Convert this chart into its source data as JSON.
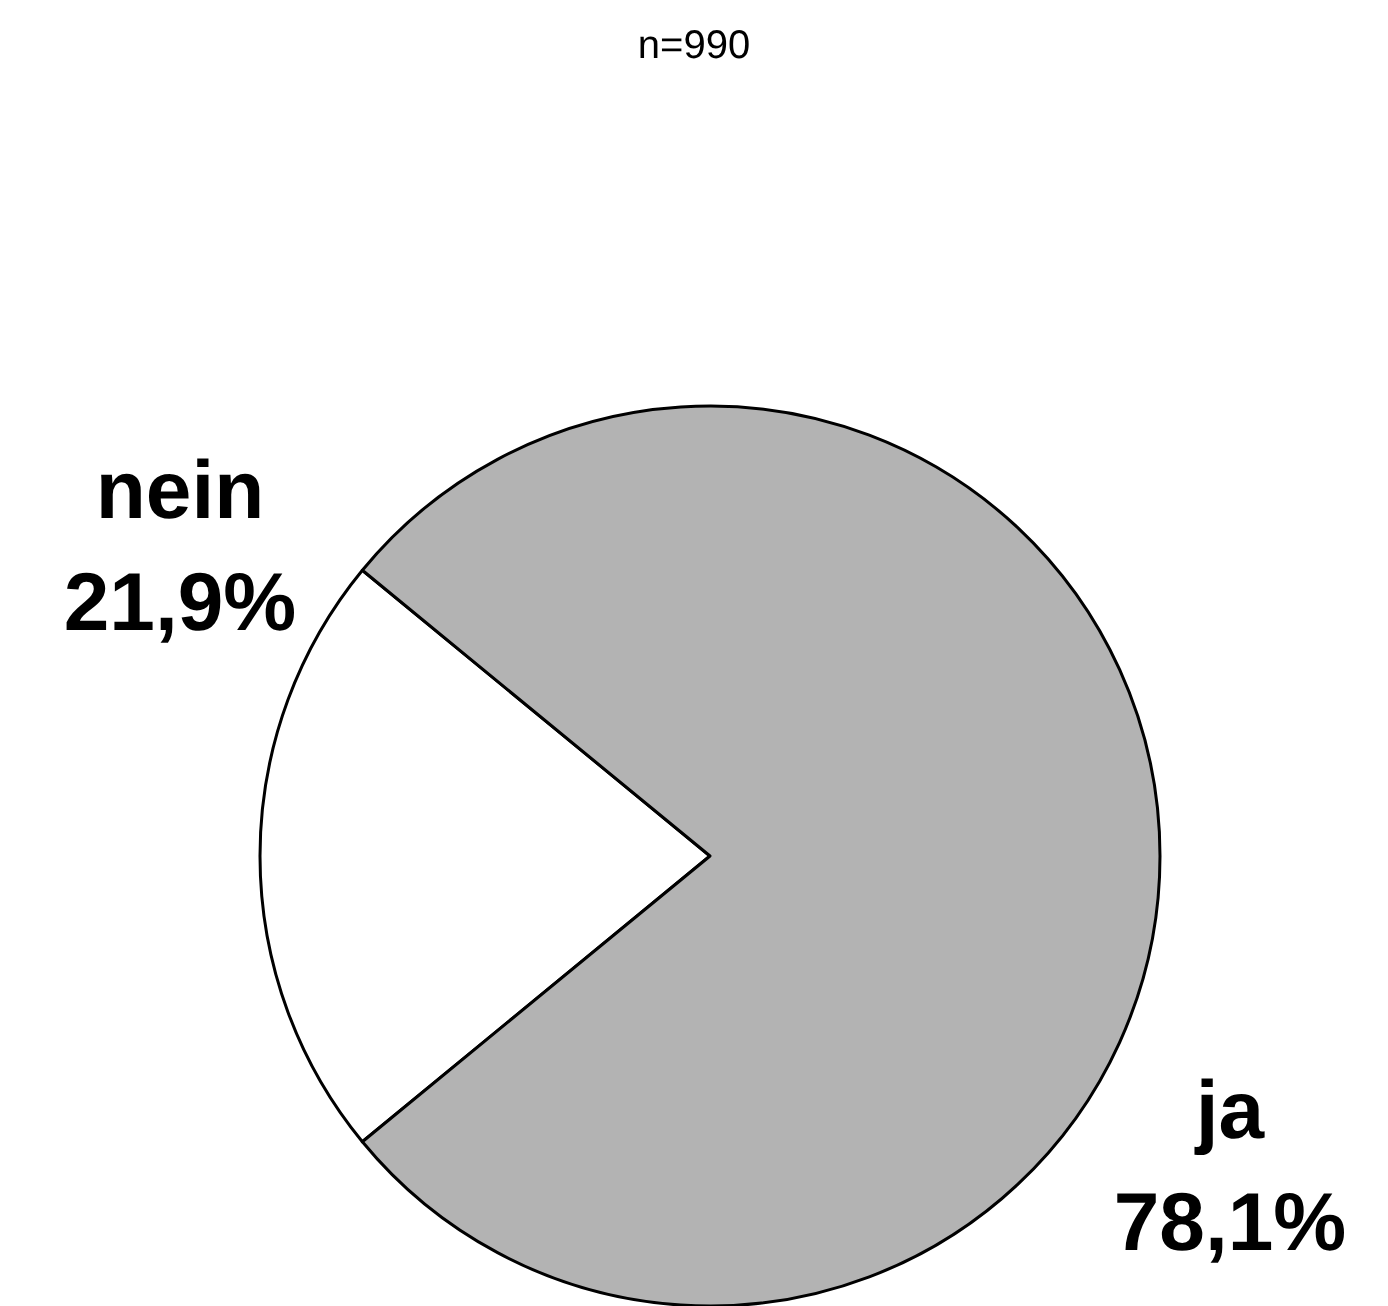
{
  "chart_data": {
    "type": "pie",
    "title": "n=990",
    "categories": [
      "nein",
      "ja"
    ],
    "values": [
      21.9,
      78.1
    ],
    "value_labels": [
      "21,9%",
      "78,1%"
    ],
    "colors": [
      "#ffffff",
      "#b3b3b3"
    ]
  }
}
